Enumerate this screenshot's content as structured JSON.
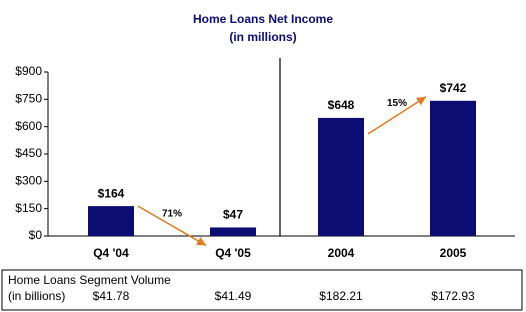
{
  "chart_data": {
    "type": "bar",
    "title": "Home Loans Net Income",
    "subtitle": "(in millions)",
    "categories": [
      "Q4 '04",
      "Q4 '05",
      "2004",
      "2005"
    ],
    "values": [
      164,
      47,
      648,
      742
    ],
    "value_labels": [
      "$164",
      "$47",
      "$648",
      "$742"
    ],
    "color": "#0c0c72",
    "ylim": [
      0,
      900
    ],
    "yticks": [
      {
        "value": 0,
        "label": "$0"
      },
      {
        "value": 150,
        "label": "$150"
      },
      {
        "value": 300,
        "label": "$300"
      },
      {
        "value": 450,
        "label": "$450"
      },
      {
        "value": 600,
        "label": "$600"
      },
      {
        "value": 750,
        "label": "$750"
      },
      {
        "value": 900,
        "label": "$900"
      }
    ],
    "annotations": [
      "71%",
      "15%"
    ]
  },
  "table": {
    "title": "Home Loans Segment Volume",
    "subtitle": "(in billions)",
    "values": [
      "$41.78",
      "$41.49",
      "$182.21",
      "$172.93"
    ]
  }
}
